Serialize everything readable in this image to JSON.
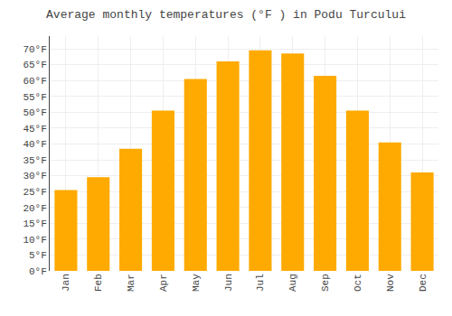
{
  "chart_data": {
    "type": "bar",
    "title": "Average monthly temperatures (°F ) in Podu Turcului",
    "categories": [
      "Jan",
      "Feb",
      "Mar",
      "Apr",
      "May",
      "Jun",
      "Jul",
      "Aug",
      "Sep",
      "Oct",
      "Nov",
      "Dec"
    ],
    "values": [
      25.5,
      29.5,
      38.5,
      50.5,
      60.5,
      66.0,
      69.5,
      68.5,
      61.5,
      50.5,
      40.5,
      31.0
    ],
    "color": "#FFAA00",
    "ylim": [
      0,
      74
    ],
    "yticks": [
      {
        "value": 0,
        "label": "0°F"
      },
      {
        "value": 5,
        "label": "5°F"
      },
      {
        "value": 10,
        "label": "10°F"
      },
      {
        "value": 15,
        "label": "15°F"
      },
      {
        "value": 20,
        "label": "20°F"
      },
      {
        "value": 25,
        "label": "25°F"
      },
      {
        "value": 30,
        "label": "30°F"
      },
      {
        "value": 35,
        "label": "35°F"
      },
      {
        "value": 40,
        "label": "40°F"
      },
      {
        "value": 45,
        "label": "45°F"
      },
      {
        "value": 50,
        "label": "50°F"
      },
      {
        "value": 55,
        "label": "55°F"
      },
      {
        "value": 60,
        "label": "60°F"
      },
      {
        "value": 65,
        "label": "65°F"
      },
      {
        "value": 70,
        "label": "70°F"
      }
    ],
    "grid": true
  }
}
